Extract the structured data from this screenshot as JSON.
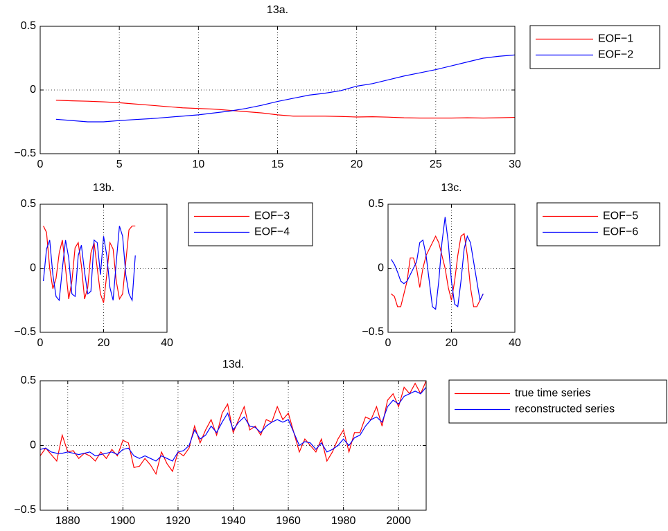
{
  "chart_data": [
    {
      "type": "line",
      "title": "13a.",
      "grid": true,
      "xlim": [
        0,
        30
      ],
      "xticks": [
        0,
        5,
        10,
        15,
        20,
        25,
        30
      ],
      "ylim": [
        -0.5,
        0.5
      ],
      "yticks": [
        {
          "value": -0.5,
          "label": "−0.5"
        },
        0,
        0.5
      ],
      "x": [
        1,
        2,
        3,
        4,
        5,
        6,
        7,
        8,
        9,
        10,
        11,
        12,
        13,
        14,
        15,
        16,
        17,
        18,
        19,
        20,
        21,
        22,
        23,
        24,
        25,
        26,
        27,
        28,
        29,
        30
      ],
      "series": [
        {
          "name": "EOF−1",
          "color": "#ff0000",
          "values": [
            -0.08,
            -0.085,
            -0.088,
            -0.093,
            -0.1,
            -0.11,
            -0.12,
            -0.13,
            -0.14,
            -0.145,
            -0.15,
            -0.16,
            -0.17,
            -0.18,
            -0.195,
            -0.205,
            -0.205,
            -0.205,
            -0.208,
            -0.212,
            -0.21,
            -0.213,
            -0.218,
            -0.22,
            -0.22,
            -0.22,
            -0.218,
            -0.22,
            -0.218,
            -0.215
          ]
        },
        {
          "name": "EOF−2",
          "color": "#0000ff",
          "values": [
            -0.23,
            -0.24,
            -0.25,
            -0.25,
            -0.24,
            -0.232,
            -0.225,
            -0.215,
            -0.205,
            -0.195,
            -0.18,
            -0.165,
            -0.145,
            -0.12,
            -0.09,
            -0.065,
            -0.04,
            -0.025,
            -0.005,
            0.03,
            0.05,
            0.08,
            0.11,
            0.135,
            0.16,
            0.19,
            0.22,
            0.25,
            0.265,
            0.275
          ]
        }
      ]
    },
    {
      "type": "line",
      "title": "13b.",
      "grid": true,
      "xlim": [
        0,
        40
      ],
      "xticks": [
        0,
        20,
        40
      ],
      "ylim": [
        -0.5,
        0.5
      ],
      "yticks": [
        {
          "value": -0.5,
          "label": "−0.5"
        },
        0,
        0.5
      ],
      "x": [
        1,
        2,
        3,
        4,
        5,
        6,
        7,
        8,
        9,
        10,
        11,
        12,
        13,
        14,
        15,
        16,
        17,
        18,
        19,
        20,
        21,
        22,
        23,
        24,
        25,
        26,
        27,
        28,
        29,
        30
      ],
      "series": [
        {
          "name": "EOF−3",
          "color": "#ff0000",
          "values": [
            0.33,
            0.28,
            0.0,
            -0.16,
            -0.08,
            0.12,
            0.22,
            0.0,
            -0.24,
            -0.1,
            0.16,
            0.2,
            0.02,
            -0.24,
            -0.15,
            0.12,
            0.2,
            0.0,
            -0.2,
            -0.27,
            -0.05,
            0.2,
            0.15,
            -0.1,
            -0.24,
            -0.2,
            0.05,
            0.3,
            0.33,
            0.33
          ]
        },
        {
          "name": "EOF−4",
          "color": "#0000ff",
          "values": [
            -0.1,
            0.15,
            0.22,
            -0.05,
            -0.22,
            -0.25,
            0.0,
            0.22,
            0.08,
            -0.2,
            -0.22,
            0.1,
            0.18,
            -0.03,
            -0.2,
            -0.18,
            0.22,
            0.2,
            -0.05,
            0.25,
            0.1,
            -0.15,
            -0.25,
            0.05,
            0.33,
            0.25,
            -0.05,
            -0.2,
            -0.25,
            0.1
          ]
        }
      ]
    },
    {
      "type": "line",
      "title": "13c.",
      "grid": true,
      "xlim": [
        0,
        40
      ],
      "xticks": [
        0,
        20,
        40
      ],
      "ylim": [
        -0.5,
        0.5
      ],
      "yticks": [
        {
          "value": -0.5,
          "label": "−0.5"
        },
        0,
        0.5
      ],
      "x": [
        1,
        2,
        3,
        4,
        5,
        6,
        7,
        8,
        9,
        10,
        11,
        12,
        13,
        14,
        15,
        16,
        17,
        18,
        19,
        20,
        21,
        22,
        23,
        24,
        25,
        26,
        27,
        28,
        29,
        30
      ],
      "series": [
        {
          "name": "EOF−5",
          "color": "#ff0000",
          "values": [
            -0.2,
            -0.22,
            -0.3,
            -0.3,
            -0.2,
            -0.1,
            0.08,
            0.08,
            0.0,
            -0.15,
            0.0,
            0.1,
            0.15,
            0.2,
            0.25,
            0.2,
            0.1,
            0.0,
            -0.15,
            -0.25,
            -0.1,
            0.1,
            0.25,
            0.27,
            0.1,
            -0.15,
            -0.3,
            -0.3,
            -0.25,
            -0.2
          ]
        },
        {
          "name": "EOF−6",
          "color": "#0000ff",
          "values": [
            0.07,
            0.03,
            -0.03,
            -0.1,
            -0.12,
            -0.1,
            -0.05,
            0.0,
            0.05,
            0.2,
            0.22,
            0.1,
            -0.1,
            -0.3,
            -0.32,
            -0.1,
            0.2,
            0.4,
            0.2,
            -0.1,
            -0.28,
            -0.3,
            -0.1,
            0.15,
            0.25,
            0.2,
            0.05,
            -0.1,
            -0.25,
            -0.2
          ]
        }
      ]
    },
    {
      "type": "line",
      "title": "13d.",
      "grid": true,
      "xlim": [
        1870,
        2010
      ],
      "xticks": [
        1880,
        1900,
        1920,
        1940,
        1960,
        1980,
        2000
      ],
      "ylim": [
        -0.5,
        0.5
      ],
      "yticks": [
        {
          "value": -0.5,
          "label": "−0.5"
        },
        0,
        0.5
      ],
      "x": [
        1870,
        1872,
        1874,
        1876,
        1878,
        1880,
        1882,
        1884,
        1886,
        1888,
        1890,
        1892,
        1894,
        1896,
        1898,
        1900,
        1902,
        1904,
        1906,
        1908,
        1910,
        1912,
        1914,
        1916,
        1918,
        1920,
        1922,
        1924,
        1926,
        1928,
        1930,
        1932,
        1934,
        1936,
        1938,
        1940,
        1942,
        1944,
        1946,
        1948,
        1950,
        1952,
        1954,
        1956,
        1958,
        1960,
        1962,
        1964,
        1966,
        1968,
        1970,
        1972,
        1974,
        1976,
        1978,
        1980,
        1982,
        1984,
        1986,
        1988,
        1990,
        1992,
        1994,
        1996,
        1998,
        2000,
        2002,
        2004,
        2006,
        2008,
        2010
      ],
      "series": [
        {
          "name": "true time series",
          "color": "#ff0000",
          "values": [
            -0.08,
            -0.02,
            -0.07,
            -0.12,
            0.08,
            -0.05,
            -0.04,
            -0.1,
            -0.06,
            -0.08,
            -0.12,
            -0.05,
            -0.1,
            -0.03,
            -0.08,
            0.04,
            0.02,
            -0.17,
            -0.16,
            -0.1,
            -0.15,
            -0.22,
            -0.05,
            -0.14,
            -0.2,
            -0.05,
            -0.08,
            -0.02,
            0.15,
            0.02,
            0.12,
            0.2,
            0.08,
            0.25,
            0.32,
            0.1,
            0.2,
            0.3,
            0.12,
            0.15,
            0.08,
            0.2,
            0.18,
            0.3,
            0.2,
            0.25,
            0.1,
            -0.05,
            0.05,
            0.0,
            -0.05,
            0.05,
            -0.12,
            -0.05,
            0.05,
            0.12,
            -0.05,
            0.1,
            0.1,
            0.22,
            0.2,
            0.3,
            0.15,
            0.35,
            0.4,
            0.3,
            0.45,
            0.4,
            0.48,
            0.4,
            0.5
          ]
        },
        {
          "name": "reconstructed series",
          "color": "#0000ff",
          "values": [
            -0.03,
            -0.02,
            -0.05,
            -0.06,
            -0.06,
            -0.05,
            -0.06,
            -0.07,
            -0.06,
            -0.05,
            -0.08,
            -0.07,
            -0.06,
            -0.05,
            -0.07,
            -0.03,
            -0.02,
            -0.08,
            -0.1,
            -0.08,
            -0.1,
            -0.12,
            -0.08,
            -0.1,
            -0.12,
            -0.05,
            -0.04,
            0.0,
            0.12,
            0.05,
            0.08,
            0.15,
            0.1,
            0.18,
            0.25,
            0.12,
            0.18,
            0.22,
            0.15,
            0.14,
            0.1,
            0.15,
            0.18,
            0.2,
            0.18,
            0.2,
            0.1,
            0.0,
            0.03,
            0.02,
            -0.03,
            0.02,
            -0.05,
            -0.03,
            0.0,
            0.05,
            0.0,
            0.06,
            0.08,
            0.15,
            0.2,
            0.22,
            0.18,
            0.3,
            0.35,
            0.32,
            0.38,
            0.4,
            0.42,
            0.4,
            0.45
          ]
        }
      ]
    }
  ]
}
